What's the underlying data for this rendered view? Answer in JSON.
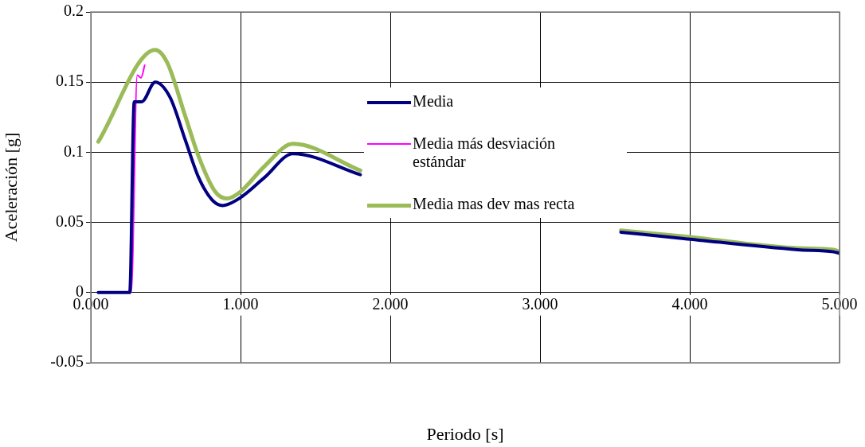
{
  "chart_data": {
    "type": "line",
    "xlabel": "Periodo [s]",
    "ylabel": "Aceleración [g]",
    "xlim": [
      0,
      5
    ],
    "xticks": [
      {
        "value": 0,
        "label": "0.000"
      },
      {
        "value": 1,
        "label": "1.000"
      },
      {
        "value": 2,
        "label": "2.000"
      },
      {
        "value": 3,
        "label": "3.000"
      },
      {
        "value": 4,
        "label": "4.000"
      },
      {
        "value": 5,
        "label": "5.000"
      }
    ],
    "ylim": [
      -0.05,
      0.2
    ],
    "yticks": [
      -0.05,
      0,
      0.05,
      0.1,
      0.15,
      0.2
    ],
    "grid": true,
    "legend": "center",
    "marker": "none",
    "line_style": "solid",
    "series": [
      {
        "name": "Media",
        "color": "#000080",
        "x": [
          0.05,
          0.26,
          0.29,
          0.34,
          0.43,
          0.53,
          0.63,
          0.72,
          0.81,
          0.88,
          0.99,
          1.16,
          1.35,
          1.8,
          2.6,
          3.54,
          3.96,
          4.72,
          4.96,
          5.0
        ],
        "values": [
          0,
          0,
          0.136,
          0.136,
          0.15,
          0.139,
          0.109,
          0.082,
          0.066,
          0.062,
          0.067,
          0.082,
          0.099,
          0.084,
          null,
          0.043,
          0.0385,
          0.0305,
          0.029,
          0.028
        ]
      },
      {
        "name": "Media más desviación estándar",
        "color": "#ff00ff",
        "x": [
          0.05,
          0.27,
          0.31,
          0.335,
          0.36
        ],
        "values": [
          0,
          0,
          0.155,
          0.153,
          0.162
        ]
      },
      {
        "name": "Media mas dev mas recta",
        "color": "#9bbb59",
        "x": [
          0.05,
          0.43,
          0.51,
          0.63,
          0.72,
          0.83,
          0.91,
          0.99,
          1.16,
          1.35,
          1.8,
          2.6,
          3.54,
          3.96,
          4.72,
          4.96,
          5.0
        ],
        "values": [
          0.1075,
          0.173,
          0.164,
          0.126,
          0.097,
          0.072,
          0.067,
          0.071,
          0.09,
          0.106,
          0.087,
          null,
          0.0443,
          0.04,
          0.0316,
          0.0305,
          0.029
        ]
      }
    ]
  }
}
